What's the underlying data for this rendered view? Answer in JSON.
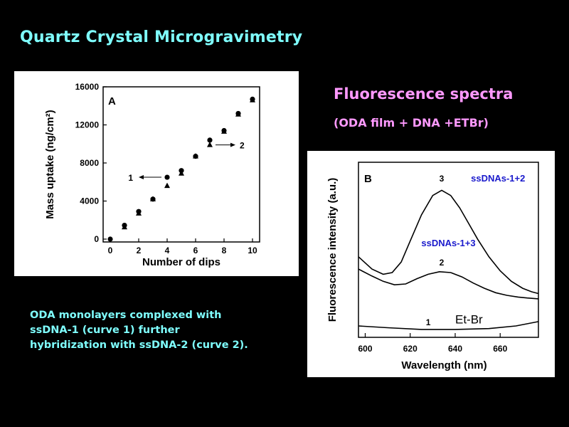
{
  "slide": {
    "title": "Quartz Crystal Microgravimetry",
    "fluorescence_title": "Fluorescence spectra",
    "fluorescence_subtitle": "(ODA film + DNA +ETBr)",
    "caption_lines": [
      "ODA monolayers complexed with",
      "ssDNA-1 (curve 1) further",
      "hybridization with ssDNA-2 (curve 2)."
    ]
  },
  "colors": {
    "background": "#000000",
    "title": "#7FFFFF",
    "fluorescence": "#FF99FF",
    "curve_label": "#1a1acc"
  },
  "chart_data": [
    {
      "type": "scatter",
      "panel_label": "A",
      "xlabel": "Number of dips",
      "ylabel": "Mass uptake (ng/cm²)",
      "xlim": [
        -0.5,
        10.5
      ],
      "ylim": [
        -300,
        16000
      ],
      "xticks": [
        0,
        2,
        4,
        6,
        8,
        10
      ],
      "yticks": [
        0,
        4000,
        8000,
        12000,
        16000
      ],
      "series": [
        {
          "name": "1",
          "marker": "circle",
          "x": [
            0,
            1,
            2,
            3,
            4,
            5,
            6,
            7,
            8,
            9,
            10
          ],
          "y": [
            0,
            1450,
            2900,
            4200,
            6500,
            7200,
            8700,
            10400,
            11400,
            13200,
            14700
          ]
        },
        {
          "name": "2",
          "marker": "triangle",
          "x": [
            1,
            2,
            3,
            4,
            5,
            6,
            7,
            8,
            9,
            10
          ],
          "y": [
            1250,
            2700,
            4200,
            5600,
            6900,
            8700,
            9900,
            11300,
            13100,
            14600
          ]
        }
      ],
      "annotations": [
        {
          "text": "1",
          "x": 4,
          "y": 6500,
          "direction": "left"
        },
        {
          "text": "2",
          "x": 7,
          "y": 9900,
          "direction": "right"
        }
      ]
    },
    {
      "type": "line",
      "panel_label": "B",
      "xlabel": "Wavelength (nm)",
      "ylabel": "Fluorescence intensity (a.u.)",
      "xlim": [
        597,
        677
      ],
      "ylim": [
        0,
        10
      ],
      "xticks": [
        600,
        620,
        640,
        660
      ],
      "series": [
        {
          "name": "3",
          "label": "ssDNAs-1+2",
          "x": [
            597,
            603,
            608,
            612,
            616,
            620,
            625,
            630,
            634,
            638,
            642,
            646,
            650,
            655,
            660,
            665,
            670,
            674,
            677
          ],
          "y": [
            4.6,
            3.9,
            3.6,
            3.7,
            4.3,
            5.5,
            7.0,
            8.1,
            8.4,
            8.1,
            7.4,
            6.5,
            5.6,
            4.6,
            3.8,
            3.2,
            2.8,
            2.6,
            2.5
          ]
        },
        {
          "name": "2",
          "label": "ssDNAs-1+3",
          "x": [
            597,
            603,
            608,
            613,
            618,
            623,
            628,
            633,
            638,
            643,
            648,
            653,
            658,
            663,
            668,
            672,
            677
          ],
          "y": [
            3.9,
            3.5,
            3.2,
            3.0,
            3.05,
            3.35,
            3.6,
            3.75,
            3.7,
            3.45,
            3.1,
            2.8,
            2.55,
            2.4,
            2.3,
            2.25,
            2.2
          ]
        },
        {
          "name": "1",
          "label": "Et-Br",
          "x": [
            597,
            610,
            625,
            640,
            655,
            667,
            677
          ],
          "y": [
            0.65,
            0.55,
            0.45,
            0.45,
            0.5,
            0.65,
            0.9
          ]
        }
      ]
    }
  ]
}
